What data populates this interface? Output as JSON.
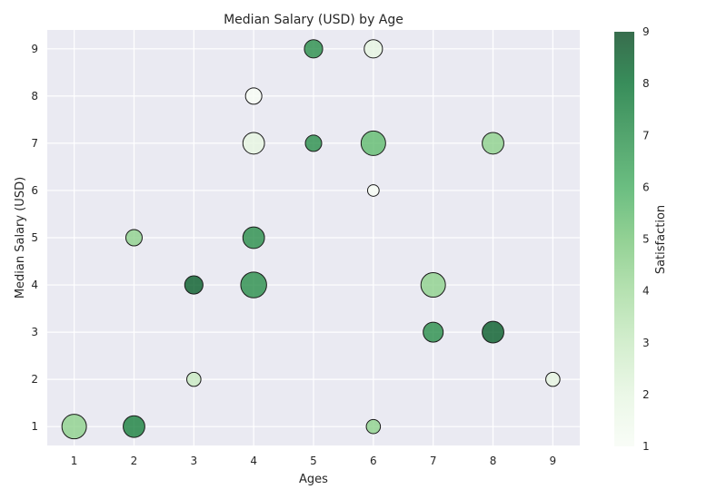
{
  "chart_data": {
    "type": "scatter",
    "title": "Median Salary (USD) by Age",
    "xlabel": "Ages",
    "ylabel": "Median Salary (USD)",
    "xlim": [
      0.55,
      9.45
    ],
    "ylim": [
      0.6,
      9.4
    ],
    "xticks": [
      "1",
      "2",
      "3",
      "4",
      "5",
      "6",
      "7",
      "8",
      "9"
    ],
    "yticks": [
      "1",
      "2",
      "3",
      "4",
      "5",
      "6",
      "7",
      "8",
      "9"
    ],
    "grid": true,
    "colorbar": {
      "label": "Satisfaction",
      "range": [
        1,
        9
      ],
      "ticks": [
        "1",
        "2",
        "3",
        "4",
        "5",
        "6",
        "7",
        "8",
        "9"
      ],
      "colors": [
        "#f7fcf5",
        "#e5f5e0",
        "#c7e9c0",
        "#a1d99b",
        "#74c476",
        "#41ab5d",
        "#238b45",
        "#006d2c",
        "#00441b"
      ]
    },
    "points": [
      {
        "x": 1,
        "y": 1,
        "size": 9,
        "satisfaction": 4.5
      },
      {
        "x": 2,
        "y": 1,
        "size": 7,
        "satisfaction": 7.5
      },
      {
        "x": 2,
        "y": 5,
        "size": 4,
        "satisfaction": 4.5
      },
      {
        "x": 3,
        "y": 2,
        "size": 3,
        "satisfaction": 3
      },
      {
        "x": 3,
        "y": 4,
        "size": 5,
        "satisfaction": 8.5
      },
      {
        "x": 4,
        "y": 8,
        "size": 4,
        "satisfaction": 1
      },
      {
        "x": 4,
        "y": 7,
        "size": 7,
        "satisfaction": 2
      },
      {
        "x": 4,
        "y": 5,
        "size": 7,
        "satisfaction": 7
      },
      {
        "x": 4,
        "y": 4,
        "size": 10,
        "satisfaction": 7
      },
      {
        "x": 5,
        "y": 9,
        "size": 5,
        "satisfaction": 7
      },
      {
        "x": 5,
        "y": 7,
        "size": 4,
        "satisfaction": 7
      },
      {
        "x": 6,
        "y": 9,
        "size": 5,
        "satisfaction": 2
      },
      {
        "x": 6,
        "y": 7,
        "size": 9,
        "satisfaction": 5.5
      },
      {
        "x": 6,
        "y": 6,
        "size": 2,
        "satisfaction": 1
      },
      {
        "x": 6,
        "y": 1,
        "size": 3,
        "satisfaction": 4.5
      },
      {
        "x": 7,
        "y": 4,
        "size": 9,
        "satisfaction": 4.5
      },
      {
        "x": 7,
        "y": 3,
        "size": 6,
        "satisfaction": 7
      },
      {
        "x": 8,
        "y": 7,
        "size": 7,
        "satisfaction": 4.5
      },
      {
        "x": 8,
        "y": 3,
        "size": 7,
        "satisfaction": 8.5
      },
      {
        "x": 9,
        "y": 2,
        "size": 3,
        "satisfaction": 2
      }
    ]
  }
}
